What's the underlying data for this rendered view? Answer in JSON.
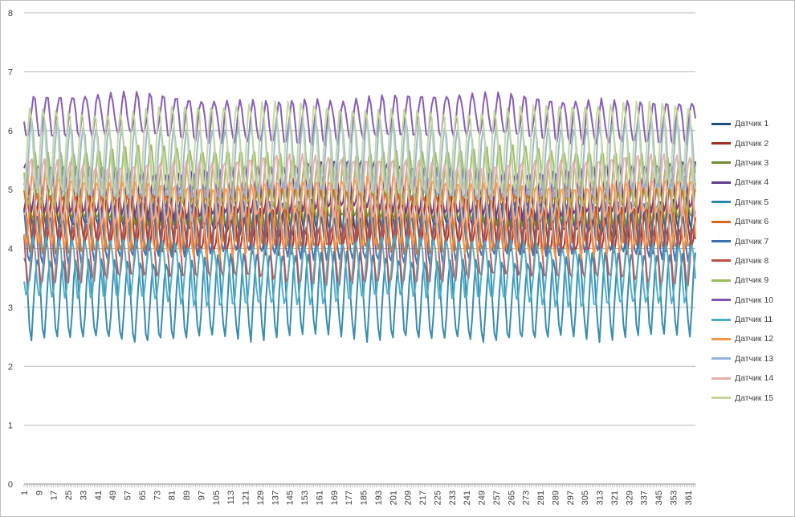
{
  "chart_data": {
    "type": "line",
    "x_start": 1,
    "x_end": 365,
    "x_tick_labels": [
      "1",
      "9",
      "17",
      "25",
      "33",
      "41",
      "49",
      "57",
      "65",
      "73",
      "81",
      "89",
      "97",
      "105",
      "113",
      "121",
      "129",
      "137",
      "145",
      "153",
      "161",
      "169",
      "177",
      "185",
      "193",
      "201",
      "209",
      "217",
      "225",
      "233",
      "241",
      "249",
      "257",
      "265",
      "273",
      "281",
      "289",
      "297",
      "305",
      "313",
      "321",
      "329",
      "337",
      "345",
      "353",
      "361"
    ],
    "ylim": [
      0,
      8
    ],
    "y_tick_labels": [
      "0",
      "1",
      "2",
      "3",
      "4",
      "5",
      "6",
      "7",
      "8"
    ],
    "grid": "horizontal",
    "legend_position": "right",
    "period_days": 7,
    "series": [
      {
        "name": "Датчик 1",
        "color": "#1f4e79",
        "center": 4.6,
        "amplitude": 0.3
      },
      {
        "name": "Датчик 2",
        "color": "#a0302a",
        "center": 4.4,
        "amplitude": 0.4
      },
      {
        "name": "Датчик 3",
        "color": "#6f8f2f",
        "center": 4.8,
        "amplitude": 0.35
      },
      {
        "name": "Датчик 4",
        "color": "#5f3d8f",
        "center": 5.0,
        "amplitude": 0.4
      },
      {
        "name": "Датчик 5",
        "color": "#2e86ab",
        "center": 3.2,
        "amplitude": 0.65,
        "trough": 2.3
      },
      {
        "name": "Датчик 6",
        "color": "#d46a1f",
        "center": 4.5,
        "amplitude": 0.5
      },
      {
        "name": "Датчик 7",
        "color": "#3b6fb0",
        "center": 4.3,
        "amplitude": 0.45
      },
      {
        "name": "Датчик 8",
        "color": "#c0504d",
        "center": 3.95,
        "amplitude": 0.5
      },
      {
        "name": "Датчик 9",
        "color": "#9bbb59",
        "center": 5.2,
        "amplitude": 0.45
      },
      {
        "name": "Датчик 10",
        "color": "#7f55b5",
        "center": 6.2,
        "amplitude": 0.35,
        "peak": 6.7
      },
      {
        "name": "Датчик 11",
        "color": "#4bacc6",
        "center": 3.6,
        "amplitude": 0.5
      },
      {
        "name": "Датчик 12",
        "color": "#f79646",
        "center": 4.55,
        "amplitude": 0.6
      },
      {
        "name": "Датчик 13",
        "color": "#95b3d7",
        "center": 5.5,
        "amplitude": 0.6
      },
      {
        "name": "Датчик 14",
        "color": "#e6b0aa",
        "center": 5.0,
        "amplitude": 0.5
      },
      {
        "name": "Датчик 15",
        "color": "#c4d79b",
        "center": 5.7,
        "amplitude": 0.7
      }
    ]
  }
}
